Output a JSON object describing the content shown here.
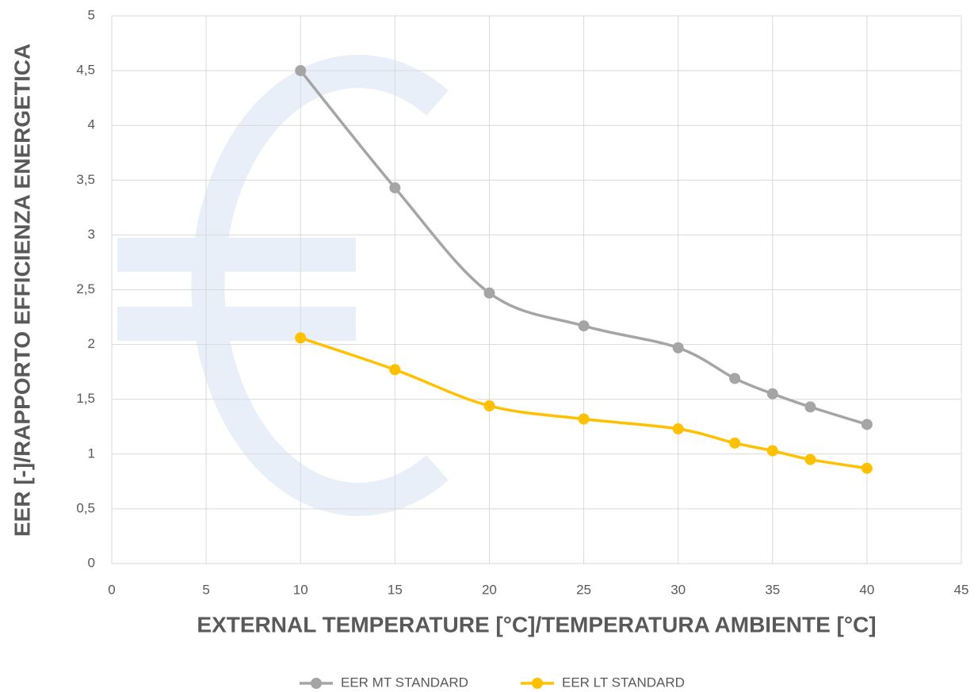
{
  "chart_data": {
    "type": "line",
    "xlabel": "EXTERNAL TEMPERATURE [°C]/TEMPERATURA AMBIENTE [°C]",
    "ylabel": "EER [-]/RAPPORTO EFFICIENZA ENERGETICA",
    "x": [
      10,
      15,
      20,
      25,
      30,
      33,
      35,
      37,
      40
    ],
    "series": [
      {
        "name": "EER MT STANDARD",
        "color": "#a5a5a5",
        "values": [
          4.5,
          3.43,
          2.47,
          2.17,
          1.97,
          1.69,
          1.55,
          1.43,
          1.27
        ]
      },
      {
        "name": "EER LT STANDARD",
        "color": "#ffc000",
        "values": [
          2.06,
          1.77,
          1.44,
          1.32,
          1.23,
          1.1,
          1.03,
          0.95,
          0.87
        ]
      }
    ],
    "xlim": [
      0,
      45
    ],
    "xticks": [
      0,
      5,
      10,
      15,
      20,
      25,
      30,
      35,
      40,
      45
    ],
    "ylim": [
      0,
      5
    ],
    "yticks": [
      0,
      {
        "value": 0.5,
        "label": "0,5"
      },
      1,
      {
        "value": 1.5,
        "label": "1,5"
      },
      2,
      {
        "value": 2.5,
        "label": "2,5"
      },
      3,
      {
        "value": 3.5,
        "label": "3,5"
      },
      4,
      {
        "value": 4.5,
        "label": "4,5"
      },
      5
    ],
    "grid": true,
    "legend": "bottom"
  }
}
